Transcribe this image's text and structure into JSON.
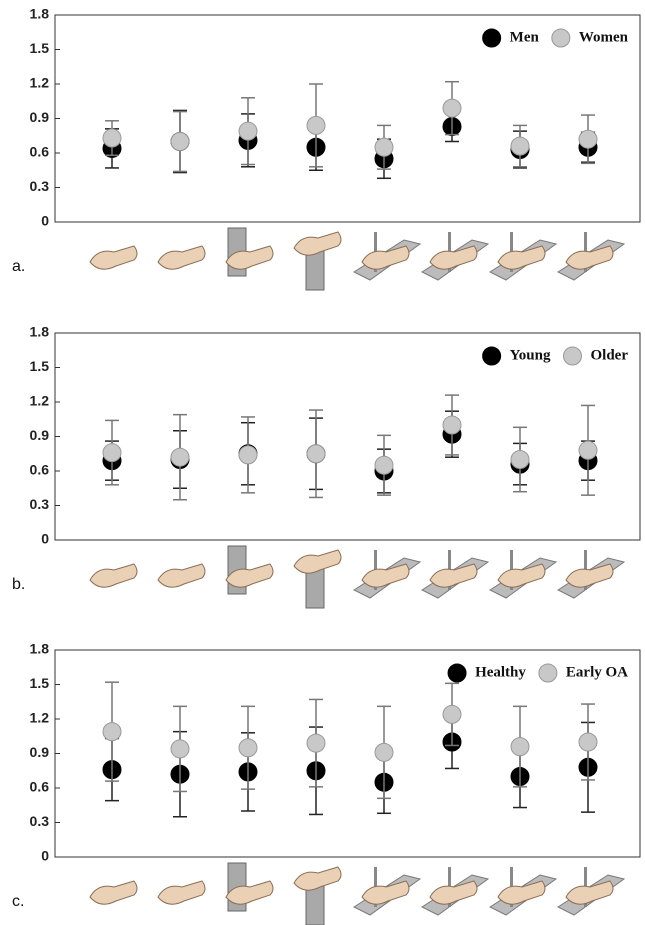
{
  "chart_data": [
    {
      "type": "errorbar",
      "label": "a.",
      "categories": [
        null,
        null,
        null,
        null,
        null,
        null,
        null,
        null
      ],
      "ylim": [
        0,
        1.8
      ],
      "yticks": [
        0,
        0.3,
        0.6,
        0.9,
        1.2,
        1.5,
        1.8
      ],
      "legend": "upper right",
      "series": [
        {
          "name": "Men",
          "color": "#000000",
          "values": [
            0.64,
            0.7,
            0.71,
            0.65,
            0.55,
            0.83,
            0.63,
            0.65
          ],
          "errors": [
            0.17,
            0.27,
            0.23,
            0.2,
            0.17,
            0.13,
            0.16,
            0.13
          ]
        },
        {
          "name": "Women",
          "color": "#c8c8c8",
          "values": [
            0.73,
            0.7,
            0.79,
            0.84,
            0.65,
            0.99,
            0.66,
            0.72
          ],
          "errors": [
            0.15,
            0.26,
            0.29,
            0.36,
            0.19,
            0.23,
            0.18,
            0.21
          ]
        }
      ]
    },
    {
      "type": "errorbar",
      "label": "b.",
      "categories": [
        null,
        null,
        null,
        null,
        null,
        null,
        null,
        null
      ],
      "ylim": [
        0,
        1.8
      ],
      "yticks": [
        0,
        0.3,
        0.6,
        0.9,
        1.2,
        1.5,
        1.8
      ],
      "legend": "upper right",
      "series": [
        {
          "name": "Young",
          "color": "#000000",
          "values": [
            0.69,
            0.7,
            0.75,
            0.75,
            0.6,
            0.92,
            0.66,
            0.69
          ],
          "errors": [
            0.17,
            0.25,
            0.27,
            0.31,
            0.19,
            0.2,
            0.18,
            0.17
          ]
        },
        {
          "name": "Older",
          "color": "#c8c8c8",
          "values": [
            0.76,
            0.72,
            0.74,
            0.75,
            0.65,
            1.0,
            0.7,
            0.78
          ],
          "errors": [
            0.28,
            0.37,
            0.33,
            0.38,
            0.26,
            0.26,
            0.28,
            0.39
          ]
        }
      ]
    },
    {
      "type": "errorbar",
      "label": "c.",
      "categories": [
        null,
        null,
        null,
        null,
        null,
        null,
        null,
        null
      ],
      "ylim": [
        0,
        1.8
      ],
      "yticks": [
        0,
        0.3,
        0.6,
        0.9,
        1.2,
        1.5,
        1.8
      ],
      "legend": "upper right",
      "series": [
        {
          "name": "Healthy",
          "color": "#000000",
          "values": [
            0.76,
            0.72,
            0.74,
            0.75,
            0.65,
            1.0,
            0.7,
            0.78
          ],
          "errors": [
            0.27,
            0.37,
            0.34,
            0.38,
            0.27,
            0.23,
            0.27,
            0.39
          ]
        },
        {
          "name": "Early OA",
          "color": "#c8c8c8",
          "values": [
            1.09,
            0.94,
            0.95,
            0.99,
            0.91,
            1.24,
            0.96,
            1.0
          ],
          "errors": [
            0.43,
            0.37,
            0.36,
            0.38,
            0.4,
            0.27,
            0.35,
            0.33
          ]
        }
      ]
    }
  ]
}
